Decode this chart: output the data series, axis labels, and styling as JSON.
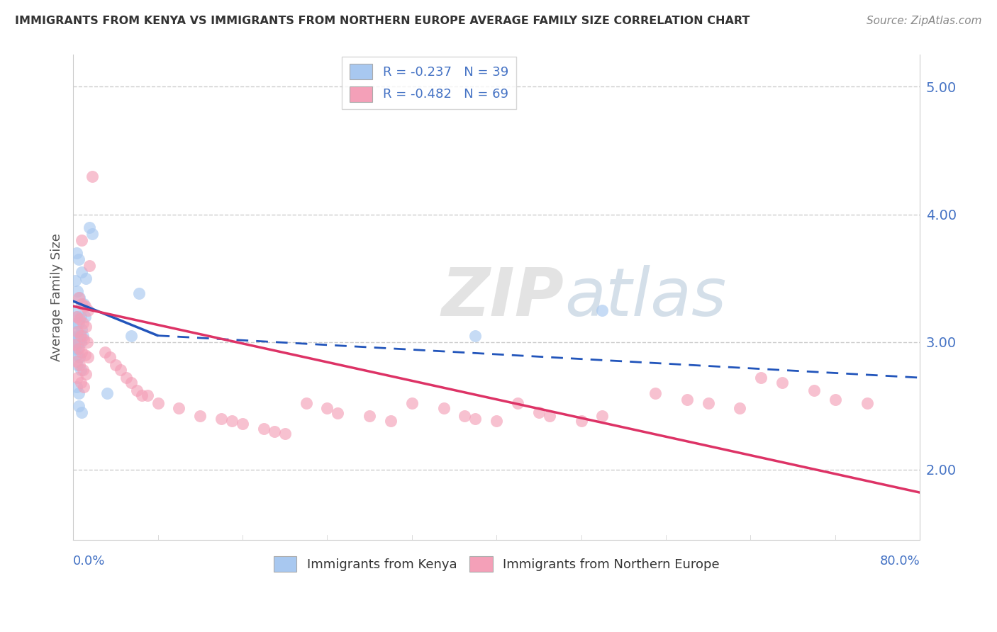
{
  "title": "IMMIGRANTS FROM KENYA VS IMMIGRANTS FROM NORTHERN EUROPE AVERAGE FAMILY SIZE CORRELATION CHART",
  "source": "Source: ZipAtlas.com",
  "ylabel": "Average Family Size",
  "xmin": 0.0,
  "xmax": 80.0,
  "ymin": 1.45,
  "ymax": 5.25,
  "yticks": [
    2.0,
    3.0,
    4.0,
    5.0
  ],
  "legend_entries": [
    {
      "label": "R = -0.237   N = 39",
      "color": "#A8C8F0"
    },
    {
      "label": "R = -0.482   N = 69",
      "color": "#F4A0B8"
    }
  ],
  "watermark_zip": "ZIP",
  "watermark_atlas": "atlas",
  "watermark_color_zip": "#C8C8C8",
  "watermark_color_atlas": "#A0B8D0",
  "kenya_color": "#A8C8F0",
  "northern_color": "#F4A0B8",
  "kenya_line_color": "#2255BB",
  "northern_line_color": "#DD3366",
  "kenya_points": [
    [
      0.3,
      3.7
    ],
    [
      0.5,
      3.65
    ],
    [
      1.5,
      3.9
    ],
    [
      1.8,
      3.85
    ],
    [
      0.8,
      3.55
    ],
    [
      1.2,
      3.5
    ],
    [
      0.4,
      3.4
    ],
    [
      0.6,
      3.35
    ],
    [
      1.0,
      3.3
    ],
    [
      0.2,
      3.25
    ],
    [
      0.4,
      3.2
    ],
    [
      0.7,
      3.2
    ],
    [
      1.1,
      3.2
    ],
    [
      0.3,
      3.15
    ],
    [
      0.5,
      3.15
    ],
    [
      0.8,
      3.1
    ],
    [
      0.2,
      3.08
    ],
    [
      0.4,
      3.05
    ],
    [
      0.6,
      3.05
    ],
    [
      0.9,
      3.05
    ],
    [
      0.3,
      3.0
    ],
    [
      0.5,
      3.0
    ],
    [
      0.7,
      3.0
    ],
    [
      0.2,
      2.95
    ],
    [
      0.4,
      2.95
    ],
    [
      0.3,
      2.9
    ],
    [
      0.6,
      2.88
    ],
    [
      0.4,
      2.82
    ],
    [
      0.7,
      2.78
    ],
    [
      5.5,
      3.05
    ],
    [
      6.2,
      3.38
    ],
    [
      0.3,
      2.65
    ],
    [
      0.5,
      2.6
    ],
    [
      3.2,
      2.6
    ],
    [
      0.5,
      2.5
    ],
    [
      0.8,
      2.45
    ],
    [
      38.0,
      3.05
    ],
    [
      50.0,
      3.25
    ],
    [
      0.2,
      3.48
    ]
  ],
  "northern_points": [
    [
      1.8,
      4.3
    ],
    [
      0.8,
      3.8
    ],
    [
      1.5,
      3.6
    ],
    [
      0.5,
      3.35
    ],
    [
      0.8,
      3.3
    ],
    [
      1.1,
      3.28
    ],
    [
      1.4,
      3.25
    ],
    [
      0.3,
      3.2
    ],
    [
      0.6,
      3.18
    ],
    [
      0.9,
      3.15
    ],
    [
      1.2,
      3.12
    ],
    [
      0.4,
      3.08
    ],
    [
      0.7,
      3.05
    ],
    [
      1.0,
      3.02
    ],
    [
      1.3,
      3.0
    ],
    [
      0.2,
      2.98
    ],
    [
      0.5,
      2.95
    ],
    [
      0.8,
      2.92
    ],
    [
      1.1,
      2.9
    ],
    [
      1.4,
      2.88
    ],
    [
      0.3,
      2.85
    ],
    [
      0.6,
      2.82
    ],
    [
      0.9,
      2.78
    ],
    [
      1.2,
      2.75
    ],
    [
      0.4,
      2.72
    ],
    [
      0.7,
      2.68
    ],
    [
      1.0,
      2.65
    ],
    [
      3.0,
      2.92
    ],
    [
      3.5,
      2.88
    ],
    [
      4.0,
      2.82
    ],
    [
      4.5,
      2.78
    ],
    [
      5.0,
      2.72
    ],
    [
      5.5,
      2.68
    ],
    [
      6.0,
      2.62
    ],
    [
      6.5,
      2.58
    ],
    [
      8.0,
      2.52
    ],
    [
      10.0,
      2.48
    ],
    [
      12.0,
      2.42
    ],
    [
      14.0,
      2.4
    ],
    [
      15.0,
      2.38
    ],
    [
      16.0,
      2.36
    ],
    [
      18.0,
      2.32
    ],
    [
      19.0,
      2.3
    ],
    [
      20.0,
      2.28
    ],
    [
      22.0,
      2.52
    ],
    [
      24.0,
      2.48
    ],
    [
      25.0,
      2.44
    ],
    [
      28.0,
      2.42
    ],
    [
      30.0,
      2.38
    ],
    [
      32.0,
      2.52
    ],
    [
      35.0,
      2.48
    ],
    [
      37.0,
      2.42
    ],
    [
      38.0,
      2.4
    ],
    [
      40.0,
      2.38
    ],
    [
      42.0,
      2.52
    ],
    [
      44.0,
      2.45
    ],
    [
      45.0,
      2.42
    ],
    [
      48.0,
      2.38
    ],
    [
      50.0,
      2.42
    ],
    [
      55.0,
      2.6
    ],
    [
      58.0,
      2.55
    ],
    [
      60.0,
      2.52
    ],
    [
      63.0,
      2.48
    ],
    [
      65.0,
      2.72
    ],
    [
      67.0,
      2.68
    ],
    [
      70.0,
      2.62
    ],
    [
      72.0,
      2.55
    ],
    [
      75.0,
      2.52
    ],
    [
      7.0,
      2.58
    ]
  ],
  "kenya_line_x0": 0.0,
  "kenya_line_y0": 3.32,
  "kenya_line_x1": 8.0,
  "kenya_line_y1": 3.05,
  "kenya_dash_x0": 8.0,
  "kenya_dash_y0": 3.05,
  "kenya_dash_x1": 80.0,
  "kenya_dash_y1": 2.72,
  "northern_line_x0": 0.0,
  "northern_line_y0": 3.28,
  "northern_line_x1": 80.0,
  "northern_line_y1": 1.82
}
